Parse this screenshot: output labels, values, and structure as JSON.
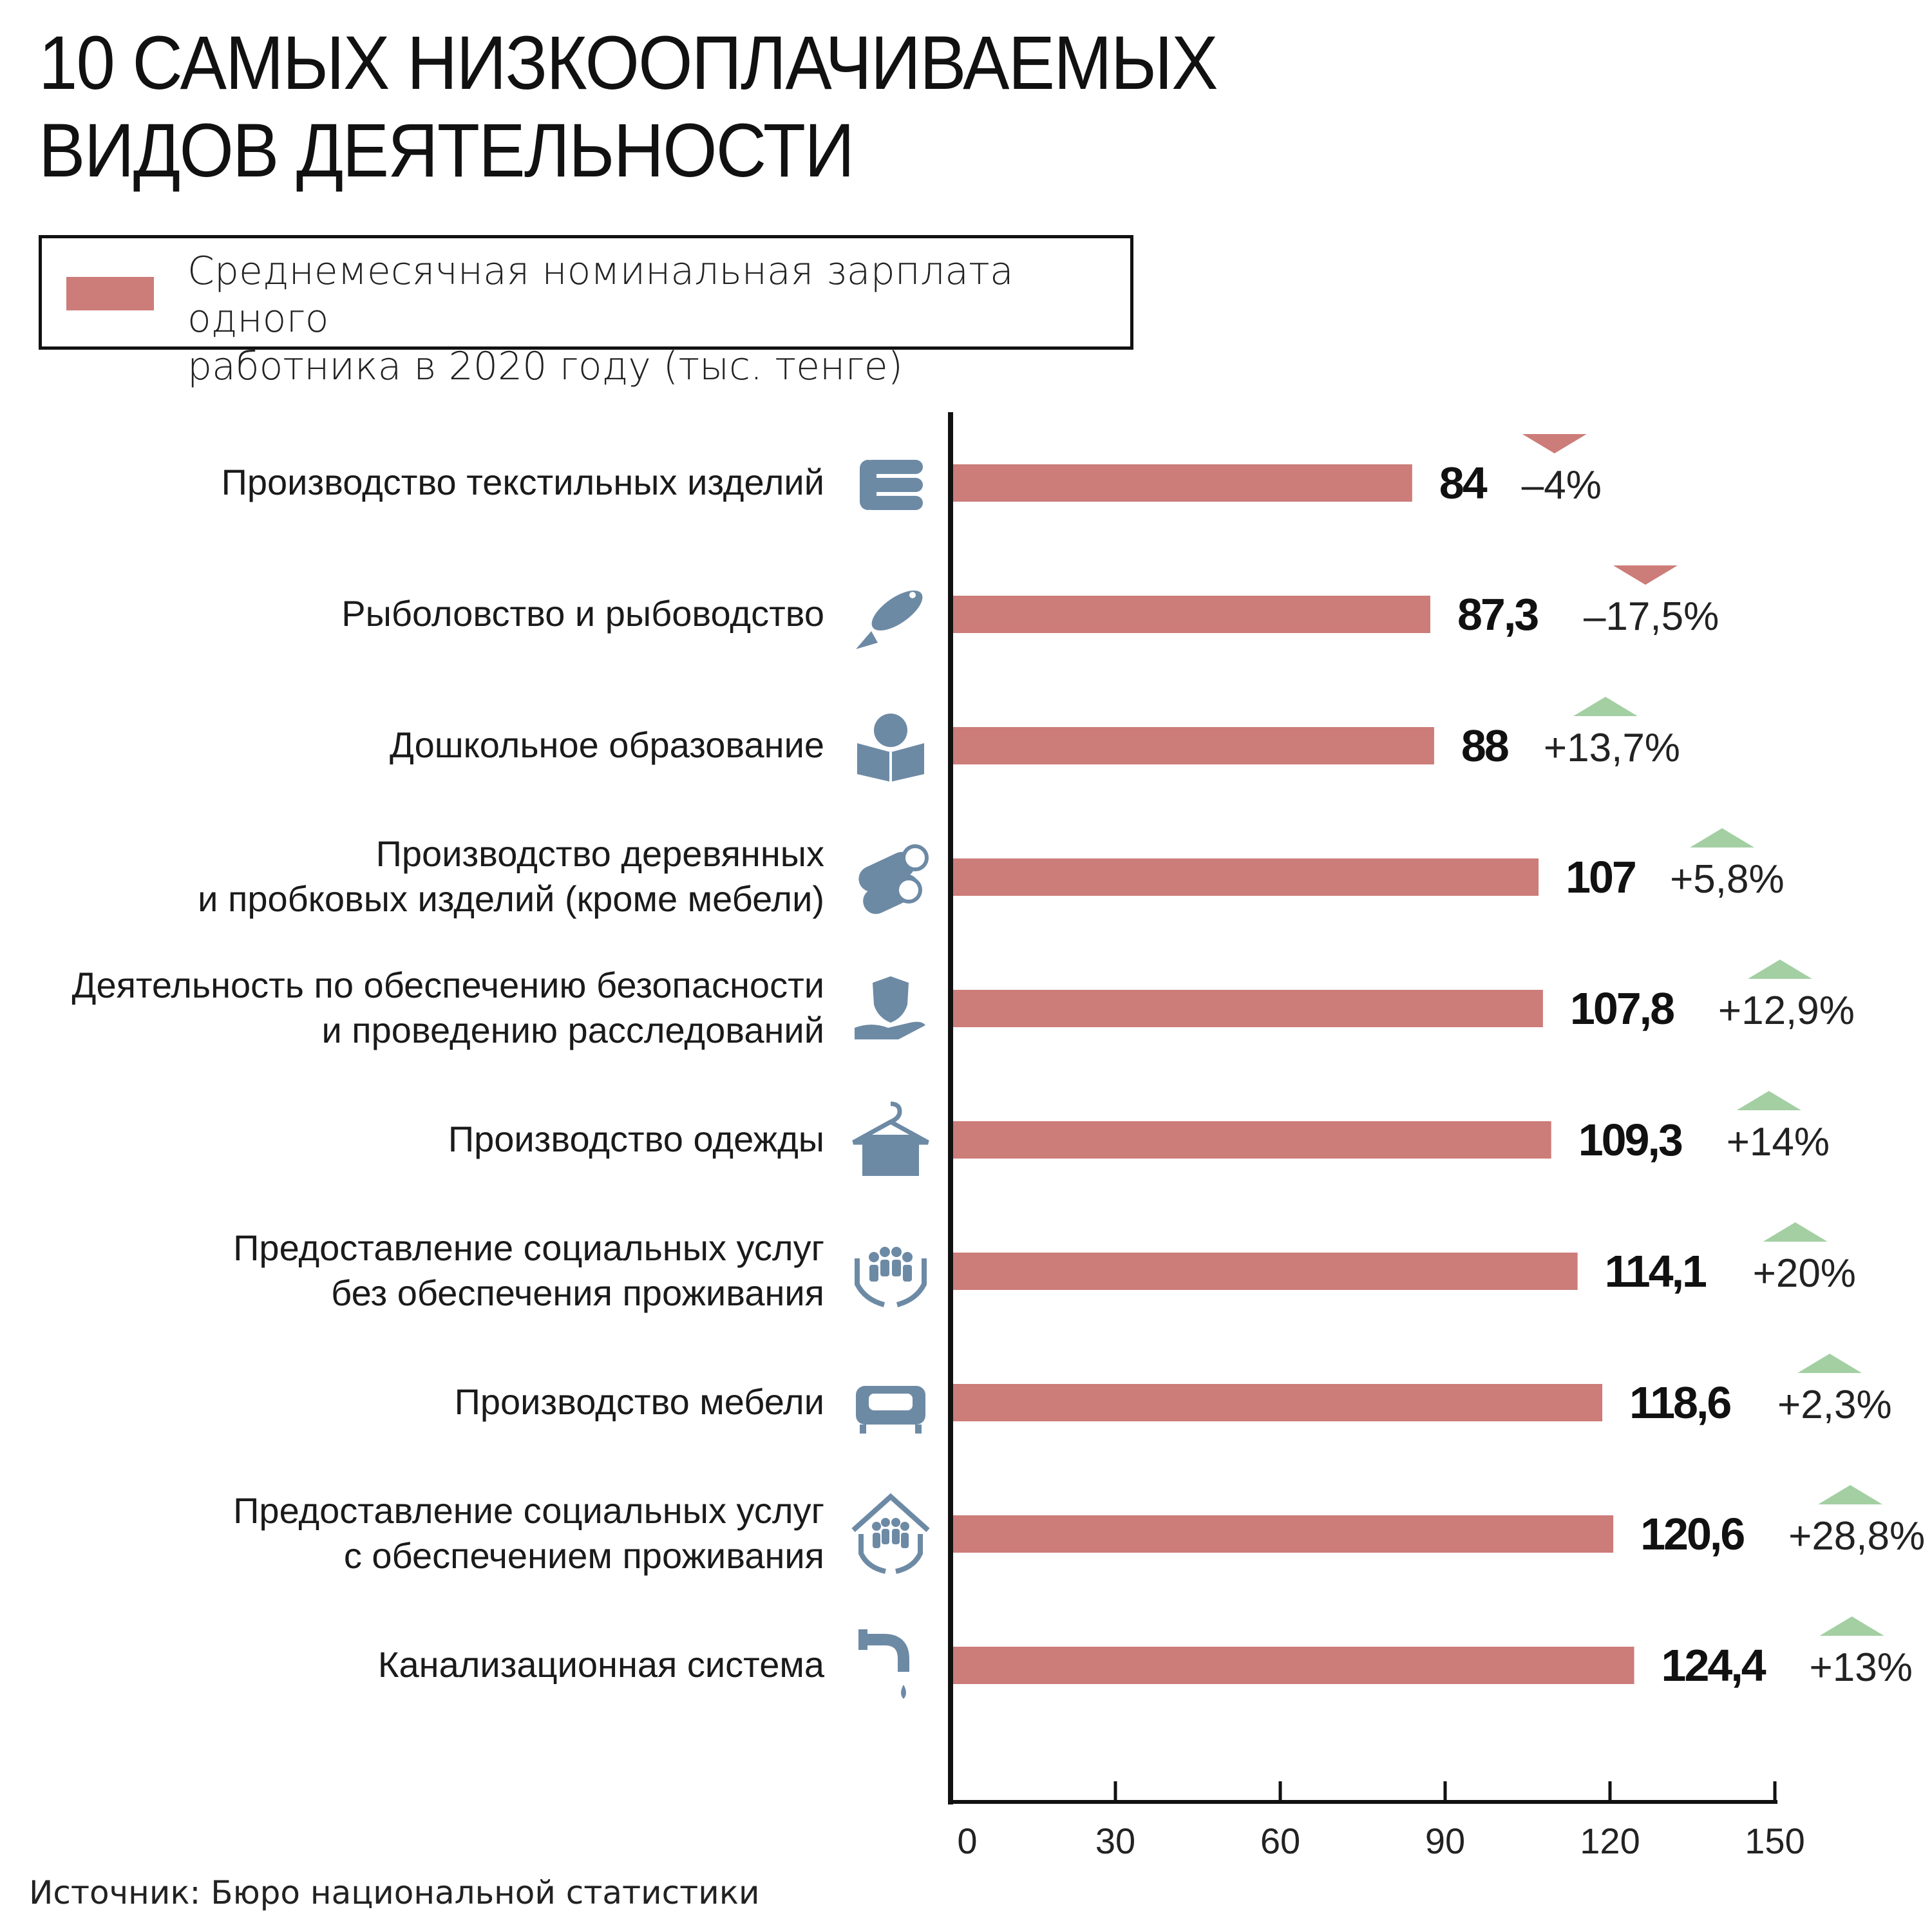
{
  "title": {
    "line1": "10 САМЫХ НИЗКООПЛАЧИВАЕМЫХ",
    "line2": "ВИДОВ ДЕЯТЕЛЬНОСТИ"
  },
  "legend": {
    "line1": "Среднемесячная номинальная зарплата одного",
    "line2": "работника в 2020 году (тыс. тенге)"
  },
  "source": "Источник: Бюро национальной статистики",
  "colors": {
    "bar": "#cc7c79",
    "down": "#cc7c79",
    "up": "#a3cfa3",
    "icon": "#6d8aa5",
    "axis": "#111111"
  },
  "chart_data": {
    "type": "bar",
    "orientation": "horizontal",
    "xlim": [
      0,
      150
    ],
    "x_ticks": [
      0,
      30,
      60,
      90,
      120,
      150
    ],
    "series": [
      {
        "name": "Среднемесячная номинальная зарплата одного работника в 2020 году (тыс. тенге)"
      }
    ],
    "categories": [
      {
        "lines": [
          "Производство текстильных изделий"
        ],
        "value": 84,
        "value_label": "84",
        "change": "–4%",
        "direction": "down",
        "icon": "towels-icon"
      },
      {
        "lines": [
          "Рыболовство и рыбоводство"
        ],
        "value": 87.3,
        "value_label": "87,3",
        "change": "–17,5%",
        "direction": "down",
        "icon": "fish-icon"
      },
      {
        "lines": [
          "Дошкольное образование"
        ],
        "value": 88,
        "value_label": "88",
        "change": "+13,7%",
        "direction": "up",
        "icon": "reading-child-icon"
      },
      {
        "lines": [
          "Производство деревянных",
          "и пробковых изделий (кроме мебели)"
        ],
        "value": 107,
        "value_label": "107",
        "change": "+5,8%",
        "direction": "up",
        "icon": "logs-icon"
      },
      {
        "lines": [
          "Деятельность по обеспечению безопасности",
          "и проведению расследований"
        ],
        "value": 107.8,
        "value_label": "107,8",
        "change": "+12,9%",
        "direction": "up",
        "icon": "shield-hand-icon"
      },
      {
        "lines": [
          "Производство одежды"
        ],
        "value": 109.3,
        "value_label": "109,3",
        "change": "+14%",
        "direction": "up",
        "icon": "hanger-icon"
      },
      {
        "lines": [
          "Предоставление социальных услуг",
          "без обеспечения проживания"
        ],
        "value": 114.1,
        "value_label": "114,1",
        "change": "+20%",
        "direction": "up",
        "icon": "family-hands-icon"
      },
      {
        "lines": [
          "Производство мебели"
        ],
        "value": 118.6,
        "value_label": "118,6",
        "change": "+2,3%",
        "direction": "up",
        "icon": "sofa-icon"
      },
      {
        "lines": [
          "Предоставление социальных услуг",
          "с обеспечением проживания"
        ],
        "value": 120.6,
        "value_label": "120,6",
        "change": "+28,8%",
        "direction": "up",
        "icon": "family-house-icon"
      },
      {
        "lines": [
          "Канализационная система"
        ],
        "value": 124.4,
        "value_label": "124,4",
        "change": "+13%",
        "direction": "up",
        "icon": "faucet-icon"
      }
    ]
  }
}
